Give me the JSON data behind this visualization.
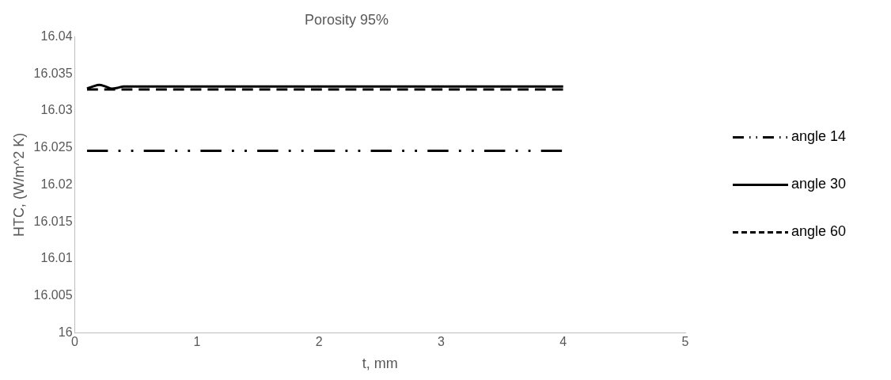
{
  "chart_data": {
    "type": "line",
    "title": "Porosity 95%",
    "xlabel": "t, mm",
    "ylabel": "HTC, (W/m^2 K)",
    "xlim": [
      0,
      5
    ],
    "xticks": [
      0,
      1,
      2,
      3,
      4,
      5
    ],
    "ylim": [
      16,
      16.04
    ],
    "yticks": [
      16,
      16.005,
      16.01,
      16.015,
      16.02,
      16.025,
      16.03,
      16.035,
      16.04
    ],
    "grid": false,
    "legend": "right",
    "marker": "none",
    "series": [
      {
        "name": "angle 14",
        "color": "#000000",
        "line_style": "dashdotdot",
        "x": [
          0.1,
          4
        ],
        "values": [
          16.0246,
          16.0246
        ]
      },
      {
        "name": "angle 30",
        "color": "#000000",
        "line_style": "solid",
        "x": [
          0.1,
          0.15,
          0.2,
          0.25,
          0.3,
          0.35,
          0.4,
          4
        ],
        "values": [
          16.033,
          16.0333,
          16.0335,
          16.0333,
          16.033,
          16.0331,
          16.0333,
          16.0333
        ]
      },
      {
        "name": "angle 60",
        "color": "#000000",
        "line_style": "dashed",
        "x": [
          0.1,
          4
        ],
        "values": [
          16.0329,
          16.0329
        ]
      }
    ]
  }
}
